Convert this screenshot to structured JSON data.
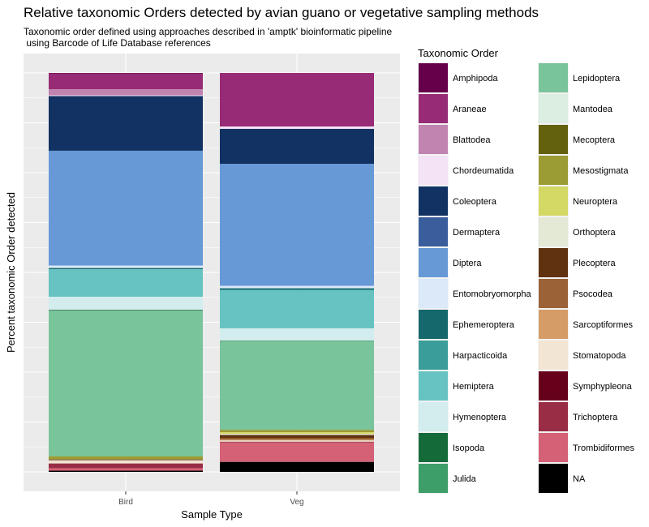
{
  "chart_data": {
    "type": "bar",
    "stacked": true,
    "title": "Relative taxonomic Orders detected by avian guano or vegetative sampling methods",
    "subtitle_lines": [
      "Taxonomic order defined using approaches described in 'amptk' bioinformatic pipeline",
      " using Barcode of Life Database references"
    ],
    "xlabel": "Sample Type",
    "ylabel": "Percent taxonomic Order detected",
    "ylim": [
      0,
      1
    ],
    "y_ticks_labeled": false,
    "grid": true,
    "legend_title": "Taxonomic Order",
    "legend_placement": "right",
    "categories": [
      "Bird",
      "Veg"
    ],
    "series": [
      {
        "name": "Amphipoda",
        "color": "#67004b",
        "values": [
          0.001,
          0.0
        ]
      },
      {
        "name": "Araneae",
        "color": "#972b75",
        "values": [
          0.04,
          0.135
        ]
      },
      {
        "name": "Blattodea",
        "color": "#c183b0",
        "values": [
          0.015,
          0.0
        ]
      },
      {
        "name": "Chordeumatida",
        "color": "#f4e3f4",
        "values": [
          0.002,
          0.006
        ]
      },
      {
        "name": "Coleoptera",
        "color": "#113262",
        "values": [
          0.137,
          0.088
        ]
      },
      {
        "name": "Dermaptera",
        "color": "#3a5e9b",
        "values": [
          0.0,
          0.0
        ]
      },
      {
        "name": "Diptera",
        "color": "#6699d6",
        "values": [
          0.288,
          0.308
        ]
      },
      {
        "name": "Entomobryomorpha",
        "color": "#dbe9f9",
        "values": [
          0.006,
          0.006
        ]
      },
      {
        "name": "Ephemeroptera",
        "color": "#15686b",
        "values": [
          0.003,
          0.004
        ]
      },
      {
        "name": "Harpacticoida",
        "color": "#3a9d9a",
        "values": [
          0.0,
          0.0
        ]
      },
      {
        "name": "Hemiptera",
        "color": "#67c2c2",
        "values": [
          0.069,
          0.097
        ]
      },
      {
        "name": "Hymenoptera",
        "color": "#d3edee",
        "values": [
          0.033,
          0.031
        ]
      },
      {
        "name": "Isopoda",
        "color": "#156a3a",
        "values": [
          0.002,
          0.001
        ]
      },
      {
        "name": "Julida",
        "color": "#3e9e69",
        "values": [
          0.0,
          0.0
        ]
      },
      {
        "name": "Lepidoptera",
        "color": "#79c49b",
        "values": [
          0.365,
          0.224
        ]
      },
      {
        "name": "Mantodea",
        "color": "#dcede1",
        "values": [
          0.0,
          0.0
        ]
      },
      {
        "name": "Mecoptera",
        "color": "#63600e",
        "values": [
          0.0,
          0.0
        ]
      },
      {
        "name": "Mesostigmata",
        "color": "#9c9c35",
        "values": [
          0.008,
          0.006
        ]
      },
      {
        "name": "Neuroptera",
        "color": "#d4d864",
        "values": [
          0.0,
          0.004
        ]
      },
      {
        "name": "Orthoptera",
        "color": "#e4e9d5",
        "values": [
          0.0,
          0.003
        ]
      },
      {
        "name": "Plecoptera",
        "color": "#61320f",
        "values": [
          0.002,
          0.008
        ]
      },
      {
        "name": "Psocodea",
        "color": "#9a6236",
        "values": [
          0.0,
          0.004
        ]
      },
      {
        "name": "Sarcoptiformes",
        "color": "#d69c67",
        "values": [
          0.0,
          0.002
        ]
      },
      {
        "name": "Stomatopoda",
        "color": "#f3e5d4",
        "values": [
          0.008,
          0.003
        ]
      },
      {
        "name": "Symphypleona",
        "color": "#67001a",
        "values": [
          0.0,
          0.0
        ]
      },
      {
        "name": "Trichoptera",
        "color": "#992d45",
        "values": [
          0.012,
          0.002
        ]
      },
      {
        "name": "Trombidiformes",
        "color": "#d46175",
        "values": [
          0.006,
          0.049
        ]
      },
      {
        "name": "NA",
        "color": "#000000",
        "values": [
          0.003,
          0.025
        ]
      }
    ]
  }
}
